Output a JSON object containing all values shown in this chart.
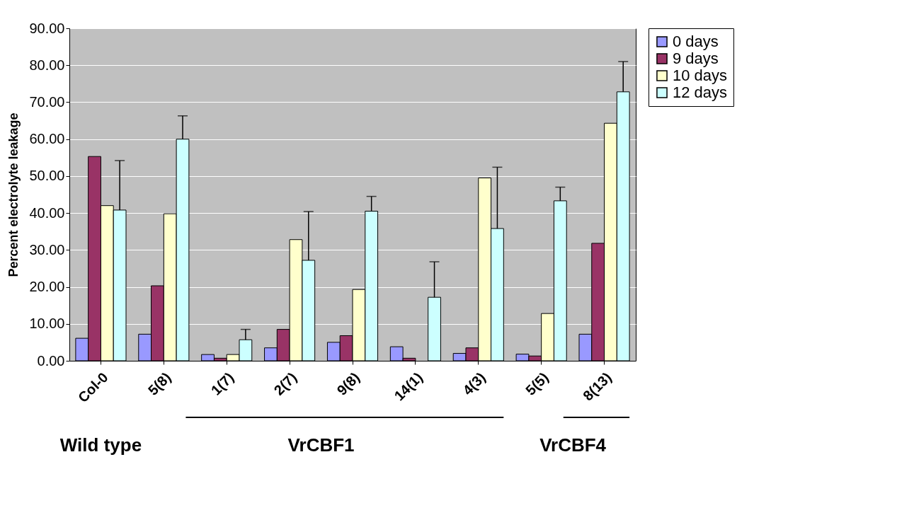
{
  "chart_data": {
    "type": "bar",
    "ylabel": "Percent electrolyte leakage",
    "categories": [
      "Col-0",
      "5(8)",
      "1(7)",
      "2(7)",
      "9(8)",
      "14(1)",
      "4(3)",
      "5(5)",
      "8(13)"
    ],
    "series": [
      {
        "name": "0 days",
        "color": "#9999ff",
        "values": [
          6.1,
          7.2,
          1.7,
          3.5,
          5.0,
          3.8,
          2.0,
          1.8,
          7.2
        ]
      },
      {
        "name": "9 days",
        "color": "#993366",
        "values": [
          55.3,
          20.3,
          0.7,
          8.5,
          6.8,
          0.7,
          3.5,
          1.3,
          31.8
        ]
      },
      {
        "name": "10 days",
        "color": "#ffffcc",
        "values": [
          42.0,
          39.8,
          1.7,
          32.8,
          19.3,
          null,
          49.5,
          12.8,
          64.3
        ]
      },
      {
        "name": "12 days",
        "color": "#ccffff",
        "values": [
          40.8,
          60.0,
          5.7,
          27.2,
          40.5,
          17.2,
          35.8,
          43.3,
          72.8
        ],
        "errors": [
          [
            40.8,
            54.2
          ],
          [
            60.0,
            66.3
          ],
          [
            5.7,
            8.5
          ],
          [
            27.2,
            40.4
          ],
          [
            40.5,
            44.5
          ],
          [
            17.2,
            26.8
          ],
          [
            35.8,
            52.4
          ],
          [
            43.3,
            47.0
          ],
          [
            72.8,
            81.0
          ]
        ]
      }
    ],
    "ylim": [
      0,
      90
    ],
    "yticks": [
      {
        "value": 0,
        "label": "0.00"
      },
      {
        "value": 10,
        "label": "10.00"
      },
      {
        "value": 20,
        "label": "20.00"
      },
      {
        "value": 30,
        "label": "30.00"
      },
      {
        "value": 40,
        "label": "40.00"
      },
      {
        "value": 50,
        "label": "50.00"
      },
      {
        "value": 60,
        "label": "60.00"
      },
      {
        "value": 70,
        "label": "70.00"
      },
      {
        "value": 80,
        "label": "80.00"
      },
      {
        "value": 90,
        "label": "90.00"
      }
    ],
    "grid": "y",
    "legend": "right",
    "annotations": [
      "Wild type",
      "VrCBF1",
      "VrCBF4"
    ]
  }
}
